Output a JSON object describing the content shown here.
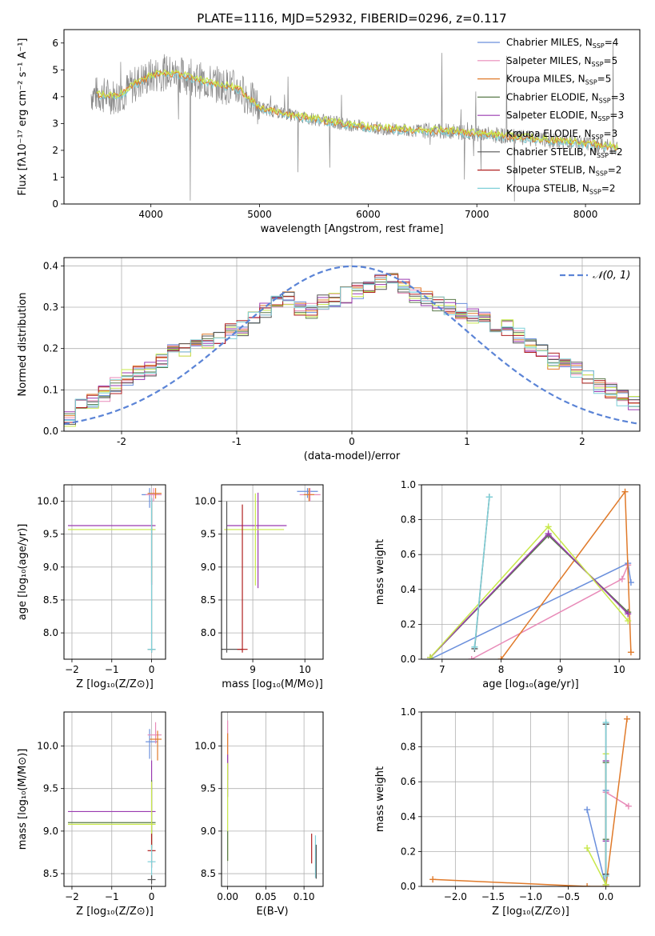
{
  "figure": {
    "title": "PLATE=1116, MJD=52932, FIBERID=0296, z=0.117"
  },
  "colors": {
    "chabrier_miles": "#6a8fdc",
    "salpeter_miles": "#e88ab8",
    "kroupa_miles": "#e07a2a",
    "chabrier_elodie": "#5a7a4a",
    "salpeter_elodie": "#9a3ab0",
    "kroupa_elodie": "#c8e84a",
    "chabrier_stelib": "#555555",
    "salpeter_stelib": "#b02020",
    "kroupa_stelib": "#7fd0d8",
    "data_gray": "#888888",
    "normal": "#5b84d6"
  },
  "chart_data": [
    {
      "id": "spectrum",
      "type": "line",
      "title": "PLATE=1116, MJD=52932, FIBERID=0296, z=0.117",
      "xlabel": "wavelength [Angstrom, rest frame]",
      "ylabel": "Flux [fλ10⁻¹⁷ erg cm⁻² s⁻¹ A⁻¹]",
      "xlim": [
        3200,
        8500
      ],
      "ylim": [
        0,
        6.5
      ],
      "xticks": [
        4000,
        5000,
        6000,
        7000,
        8000
      ],
      "yticks": [
        0,
        1,
        2,
        3,
        4,
        5,
        6
      ],
      "grid": false,
      "legend_position": "top-right",
      "legend": [
        {
          "label": "Chabrier MILES, N",
          "sub": "SSP",
          "suffix": "=4",
          "color_key": "chabrier_miles"
        },
        {
          "label": "Salpeter MILES, N",
          "sub": "SSP",
          "suffix": "=5",
          "color_key": "salpeter_miles"
        },
        {
          "label": "Kroupa MILES, N",
          "sub": "SSP",
          "suffix": "=5",
          "color_key": "kroupa_miles"
        },
        {
          "label": "Chabrier ELODIE, N",
          "sub": "SSP",
          "suffix": "=3",
          "color_key": "chabrier_elodie"
        },
        {
          "label": "Salpeter ELODIE, N",
          "sub": "SSP",
          "suffix": "=3",
          "color_key": "salpeter_elodie"
        },
        {
          "label": "Kroupa ELODIE, N",
          "sub": "SSP",
          "suffix": "=3",
          "color_key": "kroupa_elodie"
        },
        {
          "label": "Chabrier STELIB, N",
          "sub": "SSP",
          "suffix": "=2",
          "color_key": "chabrier_stelib"
        },
        {
          "label": "Salpeter STELIB, N",
          "sub": "SSP",
          "suffix": "=2",
          "color_key": "salpeter_stelib"
        },
        {
          "label": "Kroupa STELIB, N",
          "sub": "SSP",
          "suffix": "=2",
          "color_key": "kroupa_stelib"
        }
      ],
      "continuum": {
        "x": [
          3450,
          3700,
          3900,
          4100,
          4300,
          4500,
          4800,
          5000,
          5300,
          5600,
          6000,
          6400,
          6800,
          7200,
          7600,
          8000,
          8300
        ],
        "y": [
          4.1,
          4.0,
          4.6,
          4.9,
          4.8,
          4.55,
          4.3,
          3.6,
          3.3,
          3.1,
          2.85,
          2.75,
          2.7,
          2.55,
          2.4,
          2.25,
          2.1
        ]
      }
    },
    {
      "id": "residuals",
      "type": "bar",
      "xlabel": "(data-model)/error",
      "ylabel": "Normed distribution",
      "xlim": [
        -2.5,
        2.5
      ],
      "ylim": [
        0,
        0.42
      ],
      "xticks": [
        -2,
        -1,
        0,
        1,
        2
      ],
      "yticks": [
        0.0,
        0.1,
        0.2,
        0.3,
        0.4
      ],
      "grid": true,
      "legend_position": "top-right",
      "normal_label": "𝒩(0, 1)",
      "bin_start": -2.5,
      "bin_width": 0.1,
      "base_hist": [
        0.03,
        0.07,
        0.07,
        0.09,
        0.11,
        0.13,
        0.14,
        0.15,
        0.17,
        0.19,
        0.2,
        0.22,
        0.22,
        0.23,
        0.24,
        0.25,
        0.27,
        0.29,
        0.31,
        0.32,
        0.3,
        0.29,
        0.31,
        0.32,
        0.33,
        0.34,
        0.35,
        0.36,
        0.37,
        0.35,
        0.33,
        0.32,
        0.31,
        0.3,
        0.29,
        0.28,
        0.27,
        0.26,
        0.25,
        0.23,
        0.21,
        0.19,
        0.17,
        0.16,
        0.15,
        0.13,
        0.11,
        0.1,
        0.08,
        0.07,
        0.06
      ],
      "yticklabels": [
        "0.0",
        "0.1",
        "0.2",
        "0.3",
        "0.4"
      ]
    },
    {
      "id": "age_vs_z",
      "type": "scatter",
      "xlabel": "Z [log₁₀(Z/Z⊙)]",
      "ylabel": "age  [log₁₀(age/yr)]",
      "xlim": [
        -2.2,
        0.35
      ],
      "ylim": [
        7.6,
        10.25
      ],
      "xticks": [
        -2,
        -1,
        0
      ],
      "yticks": [
        8.0,
        8.5,
        9.0,
        9.5,
        10.0
      ],
      "xticklabels": [
        "−2",
        "−1",
        "0"
      ],
      "yticklabels": [
        "8.0",
        "8.5",
        "9.0",
        "9.5",
        "10.0"
      ],
      "grid": true,
      "errorbars": [
        {
          "x": -0.05,
          "y": 10.1,
          "xerr": [
            0.2,
            0.25
          ],
          "yerr": [
            0.2,
            0.1
          ],
          "color_key": "chabrier_miles"
        },
        {
          "x": 0.05,
          "y": 10.1,
          "xerr": [
            0.2,
            0.2
          ],
          "yerr": [
            0.1,
            0.1
          ],
          "color_key": "salpeter_miles"
        },
        {
          "x": 0.1,
          "y": 10.12,
          "xerr": [
            0.2,
            0.15
          ],
          "yerr": [
            0.08,
            0.08
          ],
          "color_key": "kroupa_miles"
        },
        {
          "x": 0.0,
          "y": 9.63,
          "xerr": [
            2.1,
            0.1
          ],
          "yerr": [
            0.9,
            0.4
          ],
          "color_key": "salpeter_elodie"
        },
        {
          "x": 0.0,
          "y": 9.57,
          "xerr": [
            2.1,
            0.1
          ],
          "yerr": [
            0.8,
            0.4
          ],
          "color_key": "kroupa_elodie"
        },
        {
          "x": 0.0,
          "y": 7.75,
          "xerr": [
            0.1,
            0.1
          ],
          "yerr": [
            0.05,
            2.3
          ],
          "color_key": "chabrier_stelib"
        },
        {
          "x": 0.0,
          "y": 7.75,
          "xerr": [
            0.1,
            0.1
          ],
          "yerr": [
            0.05,
            2.3
          ],
          "color_key": "kroupa_stelib"
        }
      ]
    },
    {
      "id": "age_vs_mass",
      "type": "scatter",
      "xlabel": "mass [log₁₀(M/M⊙)]",
      "ylabel": "",
      "xlim": [
        8.4,
        10.35
      ],
      "ylim": [
        7.6,
        10.25
      ],
      "xticks": [
        9,
        10
      ],
      "yticks": [
        8.0,
        8.5,
        9.0,
        9.5,
        10.0
      ],
      "xticklabels": [
        "9",
        "10"
      ],
      "yticklabels": [
        "8.0",
        "8.5",
        "9.0",
        "9.5",
        "10.0"
      ],
      "grid": true,
      "errorbars": [
        {
          "x": 10.05,
          "y": 10.15,
          "xerr": [
            0.2,
            0.2
          ],
          "yerr": [
            0.1,
            0.05
          ],
          "color_key": "chabrier_miles"
        },
        {
          "x": 10.1,
          "y": 10.1,
          "xerr": [
            0.2,
            0.2
          ],
          "yerr": [
            0.1,
            0.1
          ],
          "color_key": "salpeter_miles"
        },
        {
          "x": 10.08,
          "y": 10.1,
          "xerr": [
            0.1,
            0.1
          ],
          "yerr": [
            0.1,
            0.1
          ],
          "color_key": "kroupa_miles"
        },
        {
          "x": 9.1,
          "y": 9.63,
          "xerr": [
            0.6,
            0.55
          ],
          "yerr": [
            0.95,
            0.5
          ],
          "color_key": "salpeter_elodie"
        },
        {
          "x": 9.05,
          "y": 9.57,
          "xerr": [
            0.6,
            0.55
          ],
          "yerr": [
            0.85,
            0.55
          ],
          "color_key": "kroupa_elodie"
        },
        {
          "x": 8.5,
          "y": 7.75,
          "xerr": [
            0.1,
            0.3
          ],
          "yerr": [
            0.05,
            2.25
          ],
          "color_key": "chabrier_stelib"
        },
        {
          "x": 8.8,
          "y": 7.75,
          "xerr": [
            0.1,
            0.1
          ],
          "yerr": [
            0.05,
            2.2
          ],
          "color_key": "salpeter_stelib"
        }
      ]
    },
    {
      "id": "weight_vs_age",
      "type": "line",
      "xlabel": "age  [log₁₀(age/yr)]",
      "ylabel": "mass weight",
      "xlim": [
        6.65,
        10.35
      ],
      "ylim": [
        0,
        1.0
      ],
      "xticks": [
        7,
        8,
        9,
        10
      ],
      "yticks": [
        0.0,
        0.2,
        0.4,
        0.6,
        0.8,
        1.0
      ],
      "xticklabels": [
        "7",
        "8",
        "9",
        "10"
      ],
      "yticklabels": [
        "0.0",
        "0.2",
        "0.4",
        "0.6",
        "0.8",
        "1.0"
      ],
      "grid": true,
      "series": [
        {
          "color_key": "chabrier_miles",
          "x": [
            6.8,
            10.15,
            10.2
          ],
          "y": [
            0.0,
            0.55,
            0.44
          ]
        },
        {
          "color_key": "salpeter_miles",
          "x": [
            7.5,
            10.05,
            10.15
          ],
          "y": [
            0.0,
            0.46,
            0.54
          ]
        },
        {
          "color_key": "kroupa_miles",
          "x": [
            8.0,
            10.1,
            10.2
          ],
          "y": [
            0.0,
            0.96,
            0.04
          ]
        },
        {
          "color_key": "chabrier_elodie",
          "x": [
            6.8,
            8.8,
            10.15
          ],
          "y": [
            0.01,
            0.71,
            0.27
          ]
        },
        {
          "color_key": "salpeter_elodie",
          "x": [
            6.8,
            8.8,
            10.15
          ],
          "y": [
            0.01,
            0.72,
            0.26
          ]
        },
        {
          "color_key": "kroupa_elodie",
          "x": [
            6.8,
            8.8,
            10.15
          ],
          "y": [
            0.01,
            0.76,
            0.22
          ]
        },
        {
          "color_key": "chabrier_stelib",
          "x": [
            7.55,
            7.8
          ],
          "y": [
            0.06,
            0.93
          ]
        },
        {
          "color_key": "kroupa_stelib",
          "x": [
            7.55,
            7.8
          ],
          "y": [
            0.07,
            0.93
          ]
        }
      ]
    },
    {
      "id": "mass_vs_z",
      "type": "scatter",
      "xlabel": "Z [log₁₀(Z/Z⊙)]",
      "ylabel": "mass [log₁₀(M/M⊙)]",
      "xlim": [
        -2.2,
        0.35
      ],
      "ylim": [
        8.35,
        10.4
      ],
      "xticks": [
        -2,
        -1,
        0
      ],
      "yticks": [
        8.5,
        9.0,
        9.5,
        10.0
      ],
      "xticklabels": [
        "−2",
        "−1",
        "0"
      ],
      "yticklabels": [
        "8.5",
        "9.0",
        "9.5",
        "10.0"
      ],
      "grid": true,
      "errorbars": [
        {
          "x": -0.05,
          "y": 10.05,
          "xerr": [
            0.1,
            0.2
          ],
          "yerr": [
            0.2,
            0.15
          ],
          "color_key": "chabrier_miles"
        },
        {
          "x": 0.1,
          "y": 10.13,
          "xerr": [
            0.2,
            0.15
          ],
          "yerr": [
            0.1,
            0.15
          ],
          "color_key": "salpeter_miles"
        },
        {
          "x": 0.15,
          "y": 10.08,
          "xerr": [
            0.2,
            0.1
          ],
          "yerr": [
            0.25,
            0.1
          ],
          "color_key": "kroupa_miles"
        },
        {
          "x": 0.0,
          "y": 9.23,
          "xerr": [
            2.1,
            0.1
          ],
          "yerr": [
            0.4,
            0.6
          ],
          "color_key": "salpeter_elodie"
        },
        {
          "x": 0.0,
          "y": 9.1,
          "xerr": [
            2.1,
            0.1
          ],
          "yerr": [
            0.3,
            0.5
          ],
          "color_key": "chabrier_elodie"
        },
        {
          "x": 0.0,
          "y": 9.08,
          "xerr": [
            2.1,
            0.1
          ],
          "yerr": [
            0.3,
            0.5
          ],
          "color_key": "kroupa_elodie"
        },
        {
          "x": 0.0,
          "y": 8.77,
          "xerr": [
            0.1,
            0.1
          ],
          "yerr": [
            0.2,
            0.2
          ],
          "color_key": "salpeter_stelib"
        },
        {
          "x": 0.0,
          "y": 8.64,
          "xerr": [
            0.1,
            0.1
          ],
          "yerr": [
            0.2,
            0.2
          ],
          "color_key": "kroupa_stelib"
        },
        {
          "x": 0.0,
          "y": 8.43,
          "xerr": [
            0.1,
            0.1
          ],
          "yerr": [
            0.05,
            0.05
          ],
          "color_key": "chabrier_stelib"
        }
      ]
    },
    {
      "id": "mass_vs_ebv",
      "type": "scatter",
      "xlabel": "E(B-V)",
      "ylabel": "",
      "xlim": [
        -0.008,
        0.125
      ],
      "ylim": [
        8.35,
        10.4
      ],
      "xticks": [
        0.0,
        0.05,
        0.1
      ],
      "yticks": [
        8.5,
        9.0,
        9.5,
        10.0
      ],
      "xticklabels": [
        "0.00",
        "0.05",
        "0.10"
      ],
      "yticklabels": [
        "8.5",
        "9.0",
        "9.5",
        "10.0"
      ],
      "grid": true,
      "errorbars": [
        {
          "x": 0.0,
          "y": 10.1,
          "xerr": [
            0,
            0
          ],
          "yerr": [
            0.2,
            0.2
          ],
          "color_key": "salpeter_miles"
        },
        {
          "x": 0.0,
          "y": 9.9,
          "xerr": [
            0,
            0
          ],
          "yerr": [
            0.3,
            0.25
          ],
          "color_key": "kroupa_miles"
        },
        {
          "x": 0.0,
          "y": 9.7,
          "xerr": [
            0,
            0
          ],
          "yerr": [
            0.3,
            0.2
          ],
          "color_key": "salpeter_elodie"
        },
        {
          "x": 0.0,
          "y": 9.2,
          "xerr": [
            0,
            0
          ],
          "yerr": [
            0.55,
            0.6
          ],
          "color_key": "kroupa_elodie"
        },
        {
          "x": 0.0,
          "y": 8.8,
          "xerr": [
            0,
            0
          ],
          "yerr": [
            0.15,
            0.2
          ],
          "color_key": "chabrier_elodie"
        },
        {
          "x": 0.11,
          "y": 8.77,
          "xerr": [
            0,
            0
          ],
          "yerr": [
            0.15,
            0.2
          ],
          "color_key": "salpeter_stelib"
        },
        {
          "x": 0.115,
          "y": 8.7,
          "xerr": [
            0,
            0
          ],
          "yerr": [
            0.25,
            0.25
          ],
          "color_key": "kroupa_stelib"
        },
        {
          "x": 0.116,
          "y": 8.64,
          "xerr": [
            0,
            0
          ],
          "yerr": [
            0.2,
            0.2
          ],
          "color_key": "chabrier_stelib"
        }
      ]
    },
    {
      "id": "weight_vs_z",
      "type": "line",
      "xlabel": "Z [log₁₀(Z/Z⊙)]",
      "ylabel": "mass weight",
      "xlim": [
        -2.45,
        0.45
      ],
      "ylim": [
        0,
        1.0
      ],
      "xticks": [
        -2.0,
        -1.5,
        -1.0,
        -0.5,
        0.0
      ],
      "yticks": [
        0.0,
        0.2,
        0.4,
        0.6,
        0.8,
        1.0
      ],
      "xticklabels": [
        "−2.0",
        "−1.5",
        "−1.0",
        "−0.5",
        "0.0"
      ],
      "yticklabels": [
        "0.0",
        "0.2",
        "0.4",
        "0.6",
        "0.8",
        "1.0"
      ],
      "grid": true,
      "series": [
        {
          "color_key": "chabrier_miles",
          "x": [
            -0.25,
            0.0,
            0.0
          ],
          "y": [
            0.44,
            0.0,
            0.55
          ]
        },
        {
          "color_key": "salpeter_miles",
          "x": [
            0.0,
            0.0,
            0.3
          ],
          "y": [
            0.0,
            0.54,
            0.46
          ]
        },
        {
          "color_key": "kroupa_miles",
          "x": [
            -2.3,
            -0.25,
            0.0,
            0.28
          ],
          "y": [
            0.04,
            0.0,
            0.0,
            0.96
          ]
        },
        {
          "color_key": "chabrier_elodie",
          "x": [
            0.0,
            0.0,
            0.0
          ],
          "y": [
            0.27,
            0.01,
            0.71
          ]
        },
        {
          "color_key": "salpeter_elodie",
          "x": [
            0.0,
            0.0,
            0.0
          ],
          "y": [
            0.26,
            0.01,
            0.72
          ]
        },
        {
          "color_key": "kroupa_elodie",
          "x": [
            -0.25,
            0.0,
            0.0
          ],
          "y": [
            0.22,
            0.01,
            0.76
          ]
        },
        {
          "color_key": "chabrier_stelib",
          "x": [
            0.0,
            0.0
          ],
          "y": [
            0.07,
            0.93
          ]
        },
        {
          "color_key": "kroupa_stelib",
          "x": [
            0.0,
            0.0
          ],
          "y": [
            0.06,
            0.94
          ]
        }
      ]
    }
  ]
}
